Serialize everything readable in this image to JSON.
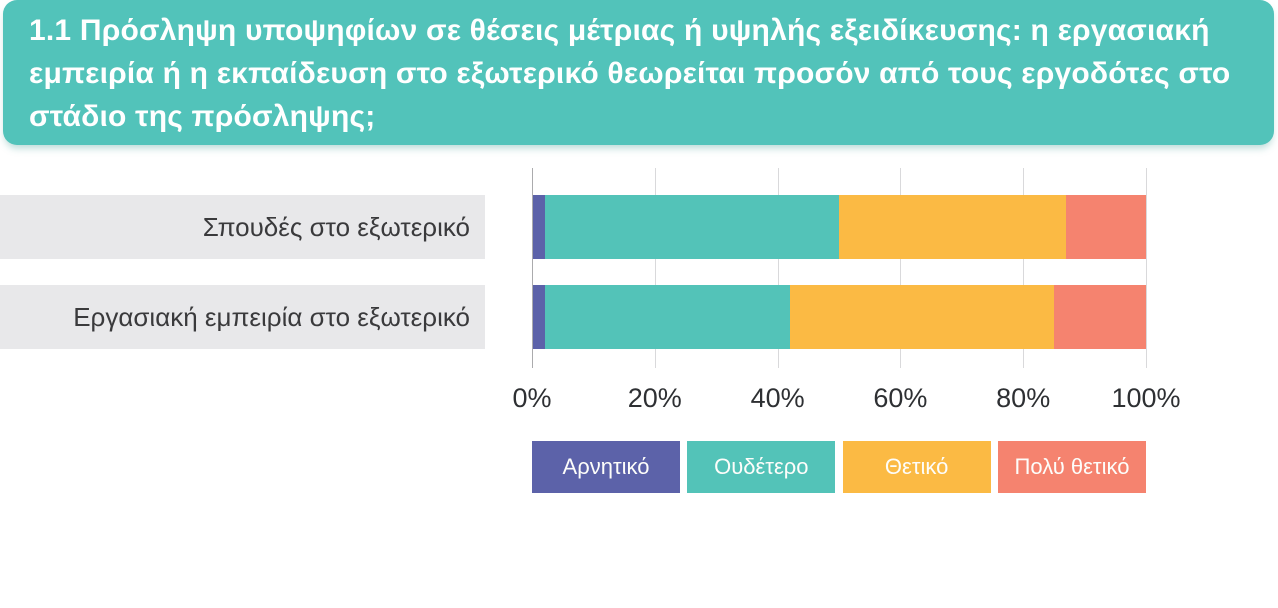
{
  "header": {
    "title": "1.1 Πρόσληψη υποψηφίων σε θέσεις μέτριας ή υψηλής εξειδίκευσης: η εργασιακή εμπειρία ή η εκπαίδευση στο εξωτερικό θεωρείται προσόν από τους εργοδότες στο στάδιο της πρόσληψης;",
    "background_color": "#52c3ba",
    "text_color": "#ffffff"
  },
  "chart_data": {
    "type": "bar",
    "orientation": "horizontal",
    "stacked": true,
    "title": "",
    "xlabel": "",
    "ylabel": "",
    "xlim": [
      0,
      100
    ],
    "x_ticks": [
      "0%",
      "20%",
      "40%",
      "60%",
      "80%",
      "100%"
    ],
    "grid": true,
    "legend_position": "bottom",
    "categories": [
      "Σπουδές στο εξωτερικό",
      "Εργασιακή εμπειρία στο εξωτερικό"
    ],
    "series": [
      {
        "name": "Αρνητικό",
        "key": "negative",
        "color": "#5c62a9",
        "values": [
          2,
          2
        ]
      },
      {
        "name": "Ουδέτερο",
        "key": "neutral",
        "color": "#53c3b8",
        "values": [
          48,
          40
        ]
      },
      {
        "name": "Θετικό",
        "key": "positive",
        "color": "#fbba44",
        "values": [
          37,
          43
        ]
      },
      {
        "name": "Πολύ θετικό",
        "key": "very-positive",
        "color": "#f5836f",
        "values": [
          13,
          15
        ]
      }
    ]
  }
}
